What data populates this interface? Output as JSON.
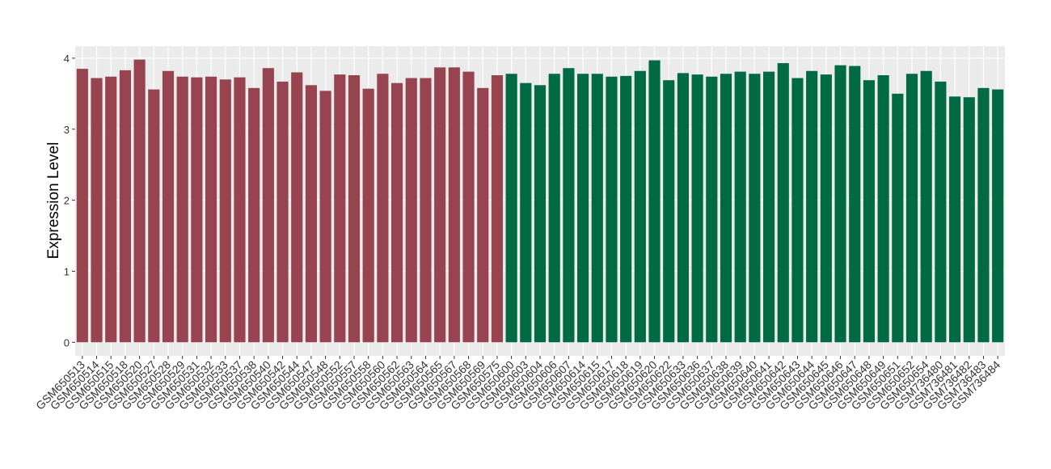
{
  "chart_data": {
    "type": "bar",
    "y_label": "Expression Level",
    "categories": [
      "GSM650513",
      "GSM650514",
      "GSM650515",
      "GSM650518",
      "GSM650520",
      "GSM650527",
      "GSM650528",
      "GSM650529",
      "GSM650531",
      "GSM650532",
      "GSM650533",
      "GSM650537",
      "GSM650538",
      "GSM650540",
      "GSM650542",
      "GSM650544",
      "GSM650547",
      "GSM650548",
      "GSM650552",
      "GSM650557",
      "GSM650558",
      "GSM650560",
      "GSM650562",
      "GSM650563",
      "GSM650564",
      "GSM650565",
      "GSM650567",
      "GSM650568",
      "GSM650569",
      "GSM650575",
      "GSM650600",
      "GSM650603",
      "GSM650604",
      "GSM650606",
      "GSM650607",
      "GSM650614",
      "GSM650615",
      "GSM650617",
      "GSM650618",
      "GSM650619",
      "GSM650620",
      "GSM650622",
      "GSM650633",
      "GSM650636",
      "GSM650637",
      "GSM650638",
      "GSM650639",
      "GSM650640",
      "GSM650641",
      "GSM650642",
      "GSM650643",
      "GSM650644",
      "GSM650645",
      "GSM650646",
      "GSM650647",
      "GSM650648",
      "GSM650649",
      "GSM650651",
      "GSM650652",
      "GSM650654",
      "GSM736480",
      "GSM736481",
      "GSM736482",
      "GSM736483",
      "GSM736484"
    ],
    "values": [
      3.85,
      3.72,
      3.74,
      3.83,
      3.98,
      3.56,
      3.82,
      3.74,
      3.73,
      3.74,
      3.7,
      3.73,
      3.58,
      3.86,
      3.67,
      3.8,
      3.62,
      3.54,
      3.77,
      3.76,
      3.57,
      3.78,
      3.65,
      3.72,
      3.72,
      3.87,
      3.87,
      3.81,
      3.58,
      3.76,
      3.78,
      3.65,
      3.62,
      3.78,
      3.86,
      3.78,
      3.78,
      3.74,
      3.75,
      3.82,
      3.97,
      3.69,
      3.79,
      3.77,
      3.74,
      3.78,
      3.81,
      3.78,
      3.81,
      3.93,
      3.72,
      3.82,
      3.77,
      3.9,
      3.89,
      3.69,
      3.76,
      3.5,
      3.78,
      3.82,
      3.67,
      3.46,
      3.45,
      3.58,
      3.56
    ],
    "colors": [
      "#974350",
      "#974350",
      "#974350",
      "#974350",
      "#974350",
      "#974350",
      "#974350",
      "#974350",
      "#974350",
      "#974350",
      "#974350",
      "#974350",
      "#974350",
      "#974350",
      "#974350",
      "#974350",
      "#974350",
      "#974350",
      "#974350",
      "#974350",
      "#974350",
      "#974350",
      "#974350",
      "#974350",
      "#974350",
      "#974350",
      "#974350",
      "#974350",
      "#974350",
      "#974350",
      "#006a44",
      "#006a44",
      "#006a44",
      "#006a44",
      "#006a44",
      "#006a44",
      "#006a44",
      "#006a44",
      "#006a44",
      "#006a44",
      "#006a44",
      "#006a44",
      "#006a44",
      "#006a44",
      "#006a44",
      "#006a44",
      "#006a44",
      "#006a44",
      "#006a44",
      "#006a44",
      "#006a44",
      "#006a44",
      "#006a44",
      "#006a44",
      "#006a44",
      "#006a44",
      "#006a44",
      "#006a44",
      "#006a44",
      "#006a44",
      "#006a44",
      "#006a44",
      "#006a44",
      "#006a44",
      "#006a44"
    ],
    "ylim": [
      -0.19,
      4.17
    ],
    "yticks": [
      0,
      1,
      2,
      3,
      4
    ],
    "grid": true
  }
}
